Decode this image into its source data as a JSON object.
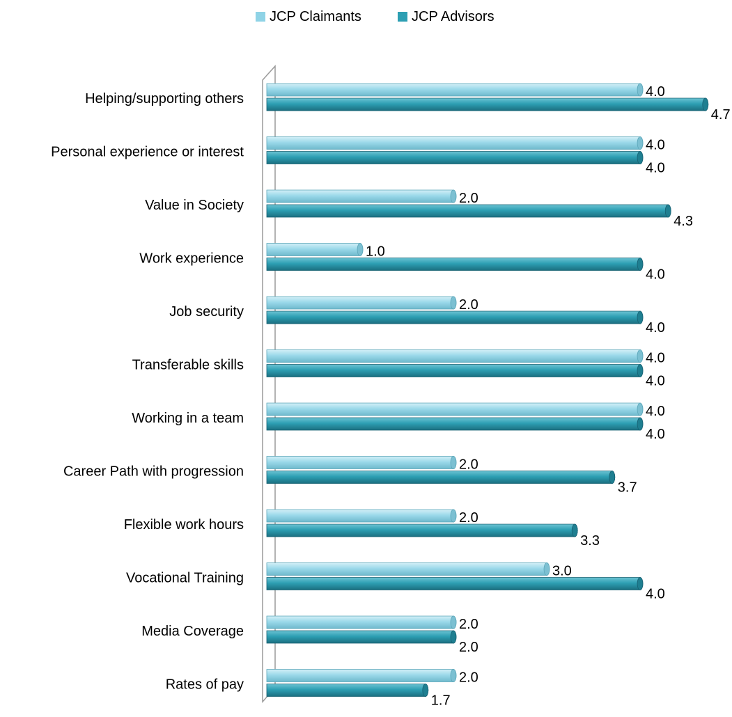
{
  "chart_data": {
    "type": "bar",
    "orientation": "horizontal",
    "style": "3d-cylinder",
    "categories": [
      "Helping/supporting others",
      "Personal experience or interest",
      "Value in Society",
      "Work experience",
      "Job security",
      "Transferable skills",
      "Working in a team",
      "Career Path with progression",
      "Flexible work hours",
      "Vocational Training",
      "Media Coverage",
      "Rates of pay"
    ],
    "series": [
      {
        "name": "JCP Claimants",
        "color": "#8fd3e6",
        "values": [
          4.0,
          4.0,
          2.0,
          1.0,
          2.0,
          4.0,
          4.0,
          2.0,
          2.0,
          3.0,
          2.0,
          2.0
        ],
        "labels": [
          "4.0",
          "4.0",
          "2.0",
          "1.0",
          "2.0",
          "4.0",
          "4.0",
          "2.0",
          "2.0",
          "3.0",
          "2.0",
          "2.0"
        ]
      },
      {
        "name": "JCP Advisors",
        "color": "#2d9fb3",
        "values": [
          4.7,
          4.0,
          4.3,
          4.0,
          4.0,
          4.0,
          4.0,
          3.7,
          3.3,
          4.0,
          2.0,
          1.7
        ],
        "labels": [
          "4.7",
          "4.0",
          "4.3",
          "4.0",
          "4.0",
          "4.0",
          "4.0",
          "3.7",
          "3.3",
          "4.0",
          "2.0",
          "1.7"
        ]
      }
    ],
    "xlim": [
      0,
      5
    ],
    "grid": false,
    "legend_position": "top",
    "title": "",
    "xlabel": "",
    "ylabel": ""
  }
}
